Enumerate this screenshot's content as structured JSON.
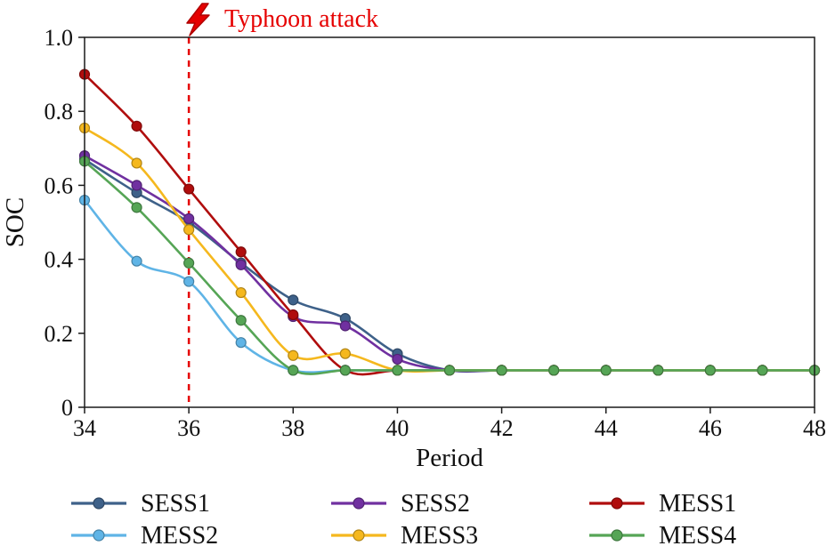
{
  "chart_data": {
    "type": "line",
    "title": "",
    "xlabel": "Period",
    "ylabel": "SOC",
    "xlim": [
      34,
      48
    ],
    "ylim": [
      0,
      1.0
    ],
    "x": [
      34,
      35,
      36,
      37,
      38,
      39,
      40,
      41,
      42,
      43,
      44,
      45,
      46,
      47,
      48
    ],
    "x_ticks": [
      34,
      36,
      38,
      40,
      42,
      44,
      46,
      48
    ],
    "y_ticks": [
      0,
      0.2,
      0.4,
      0.6,
      0.8,
      1.0
    ],
    "y_tick_labels": [
      "0",
      "0.2",
      "0.4",
      "0.6",
      "0.8",
      "1.0"
    ],
    "grid": false,
    "legend_position": "bottom",
    "annotation": {
      "label": "Typhoon attack",
      "x": 36,
      "color": "#e60000",
      "icon": "lightning-bolt"
    },
    "series": [
      {
        "name": "SESS1",
        "color": "#3e6189",
        "values": [
          0.67,
          0.58,
          0.5,
          0.39,
          0.29,
          0.24,
          0.145,
          0.1,
          0.1,
          0.1,
          0.1,
          0.1,
          0.1,
          0.1,
          0.1
        ]
      },
      {
        "name": "SESS2",
        "color": "#7030a0",
        "values": [
          0.68,
          0.6,
          0.51,
          0.385,
          0.245,
          0.22,
          0.13,
          0.1,
          0.1,
          0.1,
          0.1,
          0.1,
          0.1,
          0.1,
          0.1
        ]
      },
      {
        "name": "MESS1",
        "color": "#b00d0d",
        "values": [
          0.9,
          0.76,
          0.59,
          0.42,
          0.25,
          0.1,
          0.1,
          0.1,
          0.1,
          0.1,
          0.1,
          0.1,
          0.1,
          0.1,
          0.1
        ]
      },
      {
        "name": "MESS2",
        "color": "#5fb4e6",
        "values": [
          0.56,
          0.395,
          0.34,
          0.175,
          0.1,
          0.1,
          0.1,
          0.1,
          0.1,
          0.1,
          0.1,
          0.1,
          0.1,
          0.1,
          0.1
        ]
      },
      {
        "name": "MESS3",
        "color": "#f5b81e",
        "values": [
          0.755,
          0.66,
          0.48,
          0.31,
          0.14,
          0.145,
          0.1,
          0.1,
          0.1,
          0.1,
          0.1,
          0.1,
          0.1,
          0.1,
          0.1
        ]
      },
      {
        "name": "MESS4",
        "color": "#56a556",
        "values": [
          0.665,
          0.54,
          0.39,
          0.235,
          0.1,
          0.1,
          0.1,
          0.1,
          0.1,
          0.1,
          0.1,
          0.1,
          0.1,
          0.1,
          0.1
        ]
      }
    ]
  }
}
